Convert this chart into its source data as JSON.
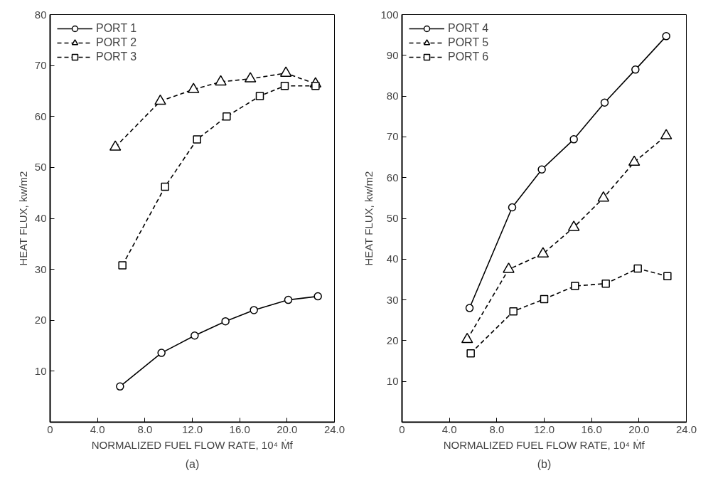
{
  "chart_data": [
    {
      "type": "line",
      "xlabel": "NORMALIZED FUEL FLOW RATE, 10⁴ Ṁf",
      "ylabel": "HEAT FLUX, kw/m2",
      "annotations": [
        "(a)"
      ],
      "xlim": [
        0,
        24
      ],
      "ylim": [
        0,
        80
      ],
      "xticks": [
        0,
        {
          "value": 4,
          "label": "4.0"
        },
        {
          "value": 8,
          "label": "8.0"
        },
        {
          "value": 12,
          "label": "12.0"
        },
        {
          "value": 16,
          "label": "16.0"
        },
        {
          "value": 20,
          "label": "20.0"
        },
        {
          "value": 24,
          "label": "24.0"
        }
      ],
      "yticks": [
        10,
        20,
        30,
        40,
        50,
        60,
        70,
        80
      ],
      "grid": false,
      "legend": "top left",
      "series": [
        {
          "name": "PORT 1",
          "color": "#000000",
          "marker": "circle",
          "line_style": "solid",
          "x": [
            5.9,
            9.4,
            12.2,
            14.8,
            17.2,
            20.1,
            22.6
          ],
          "values": [
            7,
            13.6,
            17,
            19.8,
            22,
            24,
            24.7
          ]
        },
        {
          "name": "PORT 2",
          "color": "#000000",
          "marker": "triangle",
          "line_style": "dashed",
          "x": [
            5.5,
            9.3,
            12.1,
            14.4,
            16.9,
            19.9,
            22.4
          ],
          "values": [
            54,
            63,
            65.3,
            66.8,
            67.4,
            68.5,
            66.4
          ]
        },
        {
          "name": "PORT 3",
          "color": "#000000",
          "marker": "square",
          "line_style": "dashed",
          "x": [
            6.1,
            9.7,
            12.4,
            14.9,
            17.7,
            19.8,
            22.4
          ],
          "values": [
            30.8,
            46.2,
            55.5,
            60,
            64,
            66,
            66
          ]
        }
      ]
    },
    {
      "type": "line",
      "xlabel": "NORMALIZED FUEL FLOW RATE, 10⁴ Ṁf",
      "ylabel": "HEAT FLUX, kw/m2",
      "annotations": [
        "(b)"
      ],
      "xlim": [
        0,
        24
      ],
      "ylim": [
        0,
        100
      ],
      "xticks": [
        0,
        {
          "value": 4,
          "label": "4.0"
        },
        {
          "value": 8,
          "label": "8.0"
        },
        {
          "value": 12,
          "label": "12.0"
        },
        {
          "value": 16,
          "label": "16.0"
        },
        {
          "value": 20,
          "label": "20.0"
        },
        {
          "value": 24,
          "label": "24.0"
        }
      ],
      "yticks": [
        10,
        20,
        30,
        40,
        50,
        60,
        70,
        80,
        90,
        100
      ],
      "grid": false,
      "legend": "top left",
      "series": [
        {
          "name": "PORT 4",
          "color": "#000000",
          "marker": "circle",
          "line_style": "solid",
          "x": [
            5.7,
            9.3,
            11.8,
            14.5,
            17.1,
            19.7,
            22.3
          ],
          "values": [
            28,
            52.7,
            62,
            69.4,
            78.4,
            86.5,
            94.7
          ]
        },
        {
          "name": "PORT 5",
          "color": "#000000",
          "marker": "triangle",
          "line_style": "dashed",
          "x": [
            5.5,
            9.0,
            11.9,
            14.5,
            17.0,
            19.6,
            22.3
          ],
          "values": [
            20.3,
            37.5,
            41.3,
            47.8,
            55,
            63.8,
            70.3
          ]
        },
        {
          "name": "PORT 6",
          "color": "#000000",
          "marker": "square",
          "line_style": "dashed",
          "x": [
            5.8,
            9.4,
            12.0,
            14.6,
            17.2,
            19.9,
            22.4
          ],
          "values": [
            16.9,
            27.2,
            30.2,
            33.4,
            34,
            37.7,
            35.8
          ]
        }
      ]
    }
  ]
}
